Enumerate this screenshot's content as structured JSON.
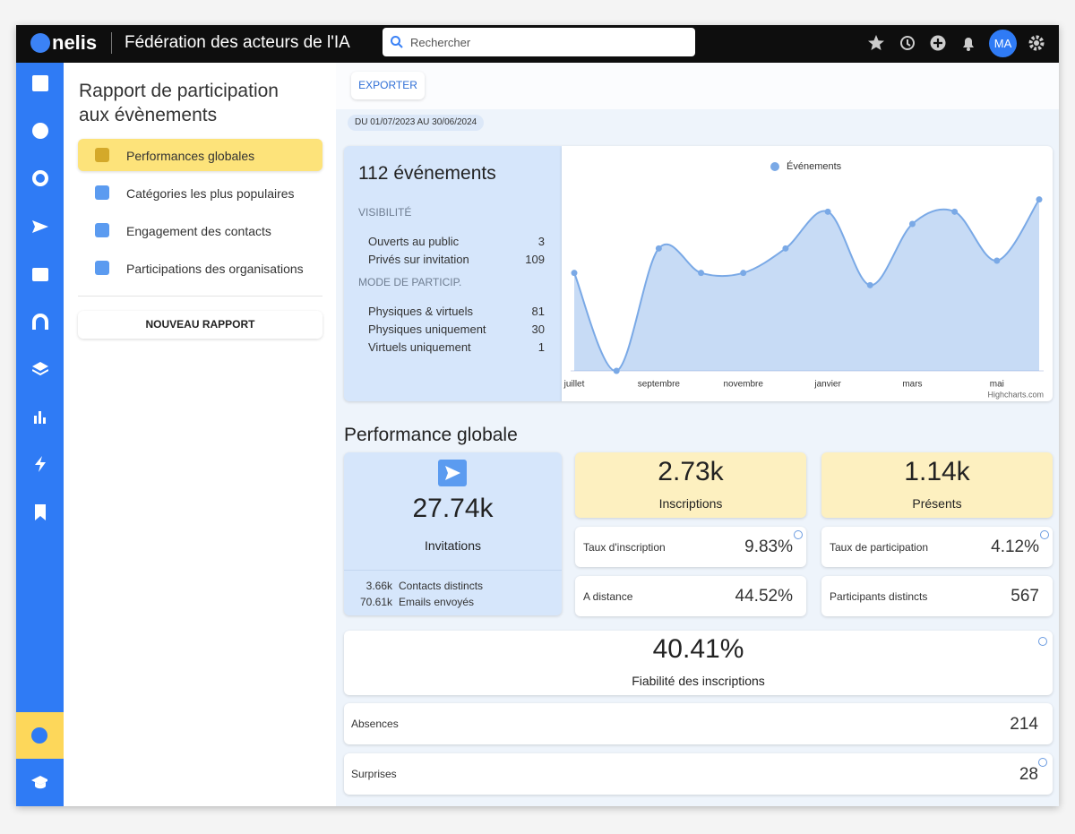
{
  "header": {
    "logo": "nelis",
    "organization": "Fédération des acteurs de l'IA",
    "search_placeholder": "Rechercher",
    "avatar": "MA"
  },
  "report_nav": {
    "title": "Rapport de participation aux évènements",
    "items": [
      "Performances globales",
      "Catégories les plus populaires",
      "Engagement des contacts",
      "Participations des organisations"
    ],
    "active_item": 0,
    "new_report_button": "NOUVEAU RAPPORT"
  },
  "toolbar": {
    "export_button": "EXPORTER",
    "period": "DU 01/07/2023 AU 30/06/2024"
  },
  "summary": {
    "title": "112 événements",
    "sections": [
      {
        "heading": "VISIBILITÉ",
        "rows": [
          {
            "label": "Ouverts au public",
            "value": 3
          },
          {
            "label": "Privés sur invitation",
            "value": 109
          }
        ]
      },
      {
        "heading": "MODE DE PARTICIP.",
        "rows": [
          {
            "label": "Physiques & virtuels",
            "value": 81
          },
          {
            "label": "Physiques uniquement",
            "value": 30
          },
          {
            "label": "Virtuels uniquement",
            "value": 1
          }
        ]
      }
    ]
  },
  "chart_data": {
    "type": "area",
    "categories": [
      "juillet",
      null,
      "septembre",
      null,
      "novembre",
      null,
      "janvier",
      null,
      "mars",
      null,
      "mai",
      null
    ],
    "series": [
      {
        "name": "Événements",
        "color": "#7aa9e6",
        "values": [
          8,
          0,
          10,
          8,
          8,
          10,
          13,
          7,
          12,
          13,
          9,
          14
        ]
      }
    ],
    "ylim": [
      0,
      15
    ],
    "credits": "Highcharts.com",
    "legend": "top"
  },
  "performance": {
    "title": "Performance globale",
    "invitations": {
      "value": "27.74k",
      "label": "Invitations",
      "details": [
        {
          "value": "3.66k",
          "label": "Contacts distincts"
        },
        {
          "value": "70.61k",
          "label": "Emails envoyés"
        }
      ]
    },
    "inscriptions": {
      "value": "2.73k",
      "label": "Inscriptions"
    },
    "presents": {
      "value": "1.14k",
      "label": "Présents"
    },
    "metrics": [
      {
        "label": "Taux d'inscription",
        "value": "9.83%"
      },
      {
        "label": "Taux de participation",
        "value": "4.12%"
      },
      {
        "label": "A distance",
        "value": "44.52%"
      },
      {
        "label": "Participants distincts",
        "value": 567
      }
    ],
    "reliability": {
      "value": "40.41%",
      "label": "Fiabilité des inscriptions"
    },
    "counts": [
      {
        "label": "Absences",
        "value": 214
      },
      {
        "label": "Surprises",
        "value": 28
      }
    ]
  }
}
